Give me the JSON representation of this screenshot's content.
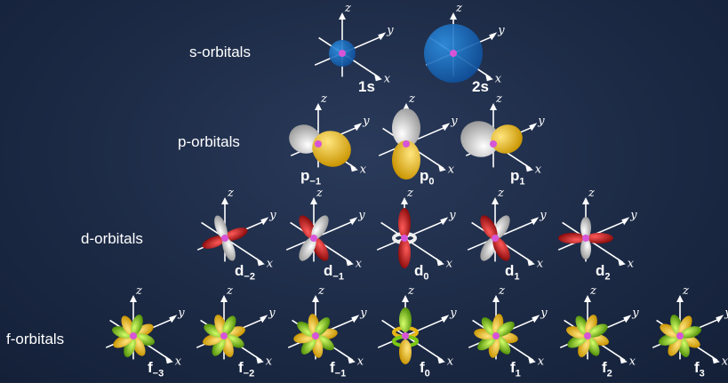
{
  "rows": [
    {
      "label": "s-orbitals"
    },
    {
      "label": "p-orbitals"
    },
    {
      "label": "d-orbitals"
    },
    {
      "label": "f-orbitals"
    }
  ],
  "axes": {
    "x": "x",
    "y": "y",
    "z": "z"
  },
  "colors": {
    "blue": "#2f8fe0",
    "white": "#e8e8e8",
    "yellow": "#f3c21c",
    "red": "#d91c1c",
    "green": "#8ed41a",
    "nucleus": "#d655d6"
  },
  "orbitals": {
    "s": [
      {
        "name": "1s",
        "sub": ""
      },
      {
        "name": "2s",
        "sub": ""
      }
    ],
    "p": [
      {
        "name": "p",
        "sub": "−1"
      },
      {
        "name": "p",
        "sub": "0"
      },
      {
        "name": "p",
        "sub": "1"
      }
    ],
    "d": [
      {
        "name": "d",
        "sub": "−2"
      },
      {
        "name": "d",
        "sub": "−1"
      },
      {
        "name": "d",
        "sub": "0"
      },
      {
        "name": "d",
        "sub": "1"
      },
      {
        "name": "d",
        "sub": "2"
      }
    ],
    "f": [
      {
        "name": "f",
        "sub": "−3"
      },
      {
        "name": "f",
        "sub": "−2"
      },
      {
        "name": "f",
        "sub": "−1"
      },
      {
        "name": "f",
        "sub": "0"
      },
      {
        "name": "f",
        "sub": "1"
      },
      {
        "name": "f",
        "sub": "2"
      },
      {
        "name": "f",
        "sub": "3"
      }
    ]
  }
}
